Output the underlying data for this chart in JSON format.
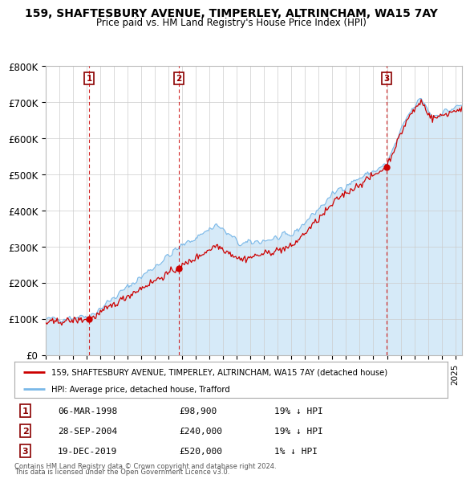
{
  "title": "159, SHAFTESBURY AVENUE, TIMPERLEY, ALTRINCHAM, WA15 7AY",
  "subtitle": "Price paid vs. HM Land Registry's House Price Index (HPI)",
  "legend_line1": "159, SHAFTESBURY AVENUE, TIMPERLEY, ALTRINCHAM, WA15 7AY (detached house)",
  "legend_line2": "HPI: Average price, detached house, Trafford",
  "footer1": "Contains HM Land Registry data © Crown copyright and database right 2024.",
  "footer2": "This data is licensed under the Open Government Licence v3.0.",
  "transactions": [
    {
      "num": 1,
      "date": "06-MAR-1998",
      "price": 98900,
      "pct": "19% ↓ HPI",
      "year": 1998.17
    },
    {
      "num": 2,
      "date": "28-SEP-2004",
      "price": 240000,
      "pct": "19% ↓ HPI",
      "year": 2004.75
    },
    {
      "num": 3,
      "date": "19-DEC-2019",
      "price": 520000,
      "pct": "1% ↓ HPI",
      "year": 2019.96
    }
  ],
  "hpi_color": "#7ab8e8",
  "hpi_fill_color": "#d6eaf8",
  "price_color": "#cc0000",
  "vline_color": "#cc0000",
  "background_color": "#ffffff",
  "grid_color": "#cccccc",
  "ylim": [
    0,
    800000
  ],
  "xlim_start": 1995.0,
  "xlim_end": 2025.5
}
